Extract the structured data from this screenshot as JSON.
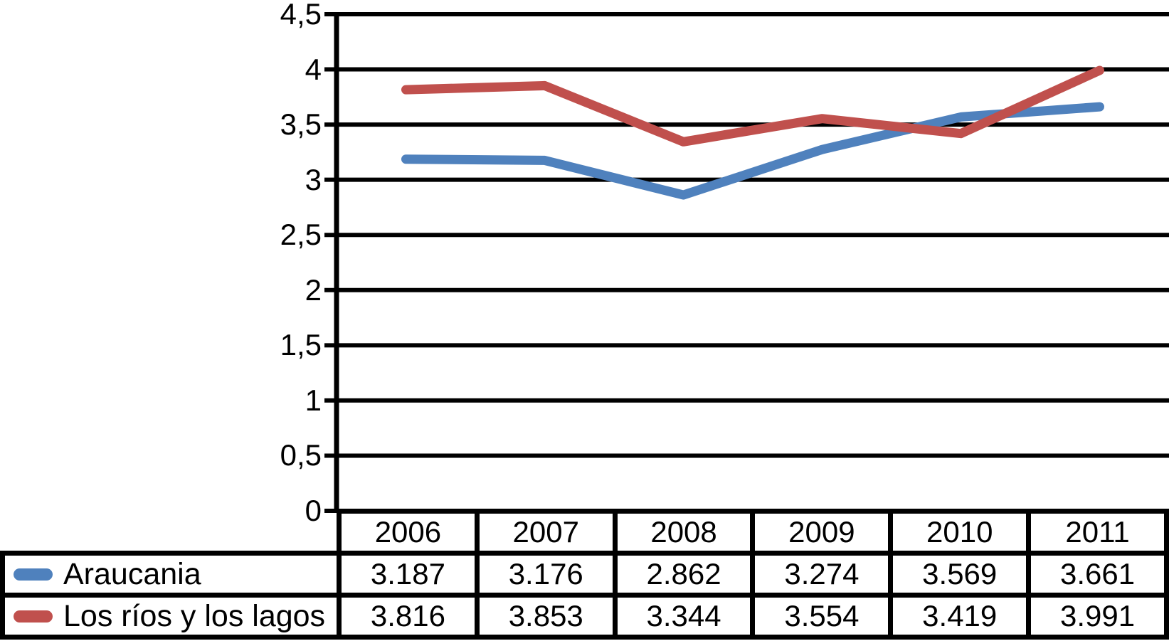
{
  "chart_data": {
    "type": "line",
    "title": "",
    "xlabel": "",
    "ylabel": "",
    "grid": true,
    "legend_position": "table-left",
    "categories": [
      "2006",
      "2007",
      "2008",
      "2009",
      "2010",
      "2011"
    ],
    "series": [
      {
        "name": "Araucania",
        "color": "#4F81BD",
        "values": [
          3.187,
          3.176,
          2.862,
          3.274,
          3.569,
          3.661
        ],
        "cell_labels": [
          "3.187",
          "3.176",
          "2.862",
          "3.274",
          "3.569",
          "3.661"
        ]
      },
      {
        "name": "Los ríos y los lagos",
        "color": "#C0504D",
        "values": [
          3.816,
          3.853,
          3.344,
          3.554,
          3.419,
          3.991
        ],
        "cell_labels": [
          "3.816",
          "3.853",
          "3.344",
          "3.554",
          "3.419",
          "3.991"
        ]
      }
    ],
    "y_axis": {
      "min": 0,
      "max": 4.5,
      "step": 0.5,
      "tick_labels": [
        "0",
        "0,5",
        "1",
        "1,5",
        "2",
        "2,5",
        "3",
        "3,5",
        "4",
        "4,5"
      ]
    },
    "colors": {
      "axis": "#000000",
      "gridline": "#000000",
      "table_border": "#000000",
      "background": "#FFFFFF"
    }
  }
}
